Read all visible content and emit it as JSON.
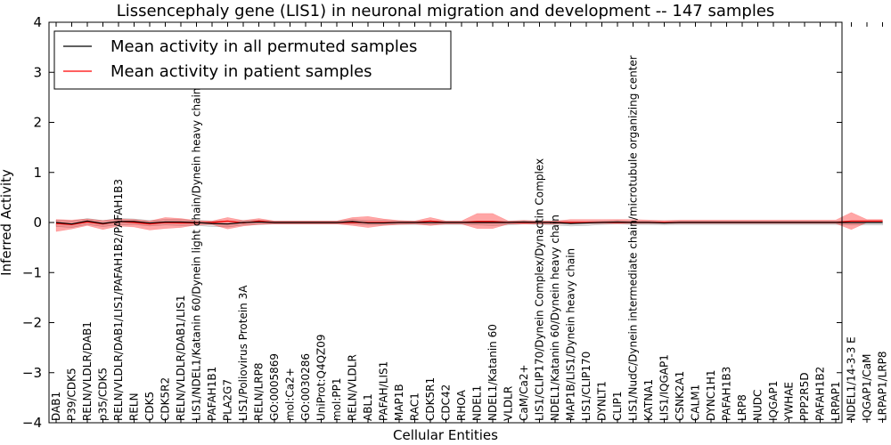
{
  "chart_data": {
    "type": "line",
    "title": "Lissencephaly gene (LIS1) in neuronal migration and development -- 147 samples",
    "xlabel": "Cellular Entities",
    "ylabel": "Inferred Activity",
    "ylim": [
      -4,
      4
    ],
    "yticks": [
      4,
      3,
      2,
      1,
      0,
      -1,
      -2,
      -3,
      -4
    ],
    "ytick_labels": [
      "4",
      "3",
      "2",
      "1",
      "0",
      "−1",
      "−2",
      "−3",
      "−4"
    ],
    "legend": {
      "placement": "top-left",
      "entries": [
        {
          "label": "Mean activity in all permuted samples",
          "color": "#000000"
        },
        {
          "label": "Mean activity in patient samples",
          "color": "#ff0000"
        }
      ]
    },
    "categories": [
      "DAB1",
      "P39/CDK5",
      "RELN/VLDLR/DAB1",
      "p35/CDK5",
      "RELN/VLDLR/DAB1/LIS1/PAFAH1B2/PAFAH1B3",
      "RELN",
      "CDK5",
      "CDK5R2",
      "RELN/VLDLR/DAB1/LIS1",
      "LIS1/NDEL1/Katanin 60/Dynein light chain/Dynein heavy chain",
      "PAFAH1B1",
      "PLA2G7",
      "LIS1/Poliovirus Protein 3A",
      "RELN/LRP8",
      "GO:0005869",
      "mol:Ca2+",
      "GO:0030286",
      "UniProt:Q4QZ09",
      "mol:PP1",
      "RELN/VLDLR",
      "ABL1",
      "PAFAH/LIS1",
      "MAP1B",
      "RAC1",
      "CDK5R1",
      "CDC42",
      "RHOA",
      "NDEL1",
      "NDEL1/Katanin 60",
      "VLDLR",
      "CaM/Ca2+",
      "LIS1/CLIP170/Dynein Complex/Dynactin Complex",
      "NDEL1/Katanin 60/Dynein heavy chain",
      "MAP1B/LIS1/Dynein heavy chain",
      "LIS1/CLIP170",
      "DYNLT1",
      "CLIP1",
      "LIS1/NudC/Dynein intermediate chain/microtubule organizing center",
      "KATNA1",
      "LIS1/IQGAP1",
      "CSNK2A1",
      "CALM1",
      "DYNC1H1",
      "PAFAH1B3",
      "LRP8",
      "NUDC",
      "IQGAP1",
      "YWHAE",
      "PPP2R5D",
      "PAFAH1B2",
      "LRPAP1",
      "NDEL1/14-3-3 E",
      "IQGAP1/CaM",
      "LRPAP1/LRP8"
    ],
    "series": [
      {
        "name": "Mean activity in all permuted samples",
        "color": "#000000",
        "values": [
          0.0,
          -0.03,
          0.03,
          -0.02,
          0.02,
          0.02,
          -0.01,
          0.01,
          0.01,
          0.0,
          -0.02,
          -0.03,
          0.0,
          0.01,
          0.0,
          0.0,
          0.0,
          0.0,
          0.0,
          0.02,
          -0.01,
          -0.01,
          0.0,
          0.0,
          0.0,
          0.0,
          0.0,
          0.0,
          0.0,
          0.0,
          0.01,
          0.0,
          0.0,
          -0.02,
          -0.01,
          0.0,
          0.01,
          0.0,
          0.0,
          -0.01,
          0.0,
          0.0,
          0.0,
          0.0,
          0.0,
          0.0,
          0.0,
          0.0,
          0.0,
          0.0,
          0.0,
          0.0,
          0.0,
          0.0
        ],
        "band_upper": [
          0.05,
          0.03,
          0.08,
          0.04,
          0.08,
          0.07,
          0.04,
          0.06,
          0.06,
          0.04,
          0.03,
          0.03,
          0.04,
          0.05,
          0.03,
          0.03,
          0.03,
          0.03,
          0.03,
          0.06,
          0.04,
          0.04,
          0.03,
          0.03,
          0.03,
          0.03,
          0.03,
          0.03,
          0.03,
          0.03,
          0.04,
          0.03,
          0.03,
          0.02,
          0.02,
          0.03,
          0.04,
          0.03,
          0.03,
          0.02,
          0.03,
          0.03,
          0.03,
          0.03,
          0.03,
          0.03,
          0.03,
          0.03,
          0.03,
          0.03,
          0.03,
          0.03,
          0.03,
          0.03
        ],
        "band_lower": [
          -0.08,
          -0.1,
          -0.04,
          -0.08,
          -0.05,
          -0.04,
          -0.07,
          -0.05,
          -0.06,
          -0.06,
          -0.08,
          -0.09,
          -0.05,
          -0.04,
          -0.03,
          -0.03,
          -0.03,
          -0.03,
          -0.03,
          -0.03,
          -0.05,
          -0.05,
          -0.04,
          -0.04,
          -0.04,
          -0.04,
          -0.04,
          -0.05,
          -0.06,
          -0.05,
          -0.03,
          -0.04,
          -0.05,
          -0.07,
          -0.06,
          -0.04,
          -0.03,
          -0.04,
          -0.04,
          -0.05,
          -0.04,
          -0.04,
          -0.04,
          -0.04,
          -0.04,
          -0.04,
          -0.04,
          -0.04,
          -0.04,
          -0.04,
          -0.04,
          -0.05,
          -0.05,
          -0.05
        ]
      },
      {
        "name": "Mean activity in patient samples",
        "color": "#ff0000",
        "values": [
          -0.02,
          -0.04,
          0.01,
          -0.03,
          0.02,
          0.0,
          -0.03,
          0.0,
          -0.01,
          -0.01,
          0.0,
          0.03,
          -0.01,
          0.03,
          0.0,
          0.0,
          0.0,
          0.0,
          0.0,
          0.0,
          0.0,
          0.0,
          0.0,
          0.0,
          0.03,
          0.0,
          0.0,
          0.02,
          0.02,
          0.0,
          0.0,
          0.0,
          0.0,
          0.0,
          0.0,
          0.0,
          0.0,
          0.0,
          0.0,
          0.0,
          0.0,
          0.0,
          0.0,
          0.0,
          0.0,
          0.0,
          0.0,
          0.0,
          0.0,
          0.0,
          0.0,
          0.03,
          0.03,
          0.03
        ],
        "band_upper": [
          0.06,
          0.05,
          0.07,
          0.04,
          0.07,
          0.06,
          0.03,
          0.1,
          0.08,
          0.04,
          0.03,
          0.1,
          0.04,
          0.08,
          0.03,
          0.03,
          0.03,
          0.03,
          0.03,
          0.1,
          0.12,
          0.07,
          0.04,
          0.03,
          0.1,
          0.03,
          0.03,
          0.18,
          0.18,
          0.03,
          0.04,
          0.03,
          0.03,
          0.06,
          0.06,
          0.06,
          0.06,
          0.06,
          0.05,
          0.04,
          0.05,
          0.05,
          0.05,
          0.05,
          0.05,
          0.05,
          0.05,
          0.05,
          0.05,
          0.05,
          0.05,
          0.2,
          0.06,
          0.06
        ],
        "band_lower": [
          -0.18,
          -0.13,
          -0.06,
          -0.14,
          -0.07,
          -0.09,
          -0.15,
          -0.12,
          -0.1,
          -0.05,
          -0.04,
          -0.13,
          -0.07,
          -0.04,
          -0.03,
          -0.03,
          -0.03,
          -0.03,
          -0.03,
          -0.06,
          -0.1,
          -0.06,
          -0.04,
          -0.03,
          -0.06,
          -0.03,
          -0.03,
          -0.12,
          -0.12,
          -0.03,
          -0.03,
          -0.03,
          -0.03,
          -0.02,
          -0.02,
          -0.02,
          -0.02,
          -0.02,
          -0.02,
          -0.02,
          -0.02,
          -0.02,
          -0.02,
          -0.02,
          -0.02,
          -0.02,
          -0.02,
          -0.02,
          -0.02,
          -0.02,
          -0.02,
          -0.14,
          0.0,
          0.0
        ]
      }
    ]
  }
}
